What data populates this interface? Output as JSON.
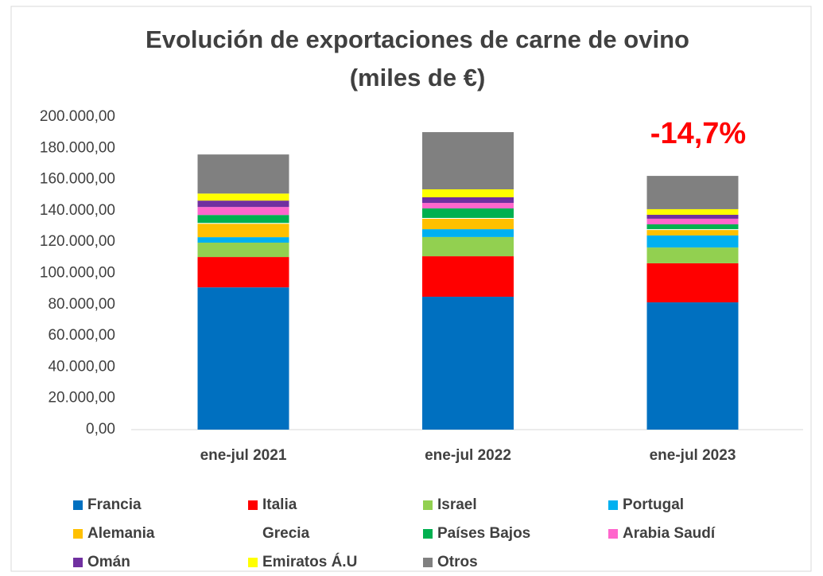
{
  "chart_data": {
    "type": "stacked_bar",
    "title": [
      "Evolución de exportaciones de carne de ovino",
      "(miles de €)"
    ],
    "annotation": "-14,7%",
    "categories": [
      "ene-jul 2021",
      "ene-jul 2022",
      "ene-jul 2023"
    ],
    "ylim": [
      0,
      200000
    ],
    "yticks": [
      {
        "value": 0,
        "label": "0,00"
      },
      {
        "value": 20000,
        "label": "20.000,00"
      },
      {
        "value": 40000,
        "label": "40.000,00"
      },
      {
        "value": 60000,
        "label": "60.000,00"
      },
      {
        "value": 80000,
        "label": "80.000,00"
      },
      {
        "value": 100000,
        "label": "100.000,00"
      },
      {
        "value": 120000,
        "label": "120.000,00"
      },
      {
        "value": 140000,
        "label": "140.000,00"
      },
      {
        "value": 160000,
        "label": "160.000,00"
      },
      {
        "value": 180000,
        "label": "180.000,00"
      },
      {
        "value": 200000,
        "label": "200.000,00"
      }
    ],
    "grid": false,
    "legend": "bottom",
    "series": [
      {
        "name": "Francia",
        "color": "#0070c0",
        "values": [
          91000,
          85000,
          81400
        ]
      },
      {
        "name": "Italia",
        "color": "#ff0000",
        "values": [
          19400,
          25900,
          25000
        ]
      },
      {
        "name": "Israel",
        "color": "#92d050",
        "values": [
          9200,
          12300,
          10100
        ]
      },
      {
        "name": "Portugal",
        "color": "#00b0f0",
        "values": [
          3500,
          5000,
          7700
        ]
      },
      {
        "name": "Alemania",
        "color": "#ffc000",
        "values": [
          8600,
          6700,
          3500
        ]
      },
      {
        "name": "Grecia",
        "color": "#ffffff",
        "values": [
          500,
          500,
          500
        ]
      },
      {
        "name": "Países Bajos",
        "color": "#00b050",
        "values": [
          5100,
          6100,
          3100
        ]
      },
      {
        "name": "Arabia Saudí",
        "color": "#ff66cc",
        "values": [
          5100,
          3500,
          3600
        ]
      },
      {
        "name": "Omán",
        "color": "#7030a0",
        "values": [
          4100,
          3600,
          2500
        ]
      },
      {
        "name": "Emiratos Á.U",
        "color": "#ffff00",
        "values": [
          4500,
          5100,
          3600
        ]
      },
      {
        "name": "Otros",
        "color": "#808080",
        "values": [
          25000,
          36600,
          21300
        ]
      }
    ]
  }
}
